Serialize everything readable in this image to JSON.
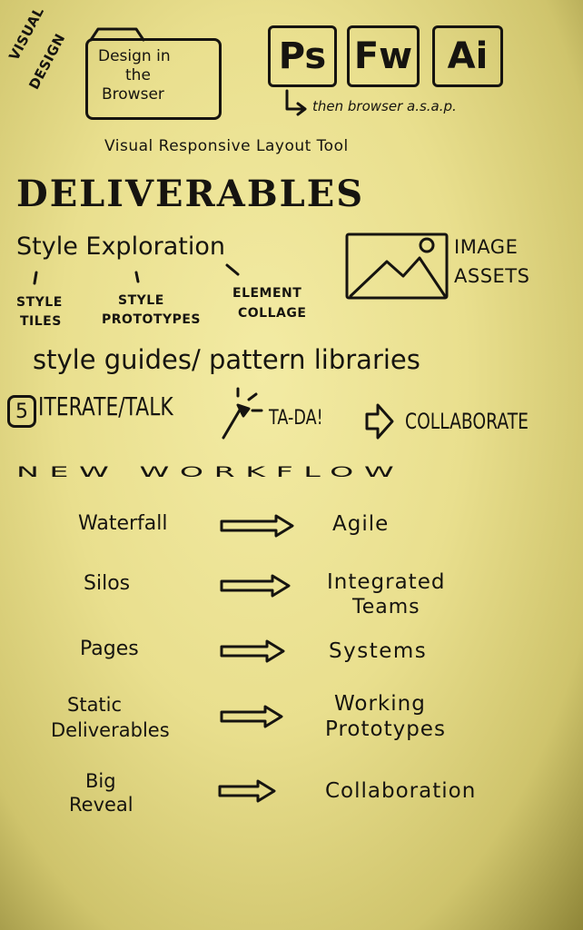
{
  "top": {
    "corner_label_1": "VISUAL",
    "corner_label_2": "DESIGN",
    "browser_box_lines": [
      "Design in",
      "the",
      "Browser"
    ],
    "apps": [
      "Ps",
      "Fw",
      "Ai"
    ],
    "then_note": "then browser a.s.a.p.",
    "subtitle": "Visual Responsive Layout Tool"
  },
  "deliverables": {
    "title": "DELIVERABLES",
    "style_exploration": "Style Exploration",
    "branches": [
      {
        "line1": "STYLE",
        "line2": "TILES"
      },
      {
        "line1": "STYLE",
        "line2": "PROTOTYPES"
      },
      {
        "line1": "ELEMENT",
        "line2": "COLLAGE"
      }
    ],
    "image_assets_line1": "IMAGE",
    "image_assets_line2": "ASSETS",
    "image_icon": "image-placeholder-icon",
    "style_guides": "style guides/ pattern libraries",
    "iterate_number": "5",
    "iterate": "ITERATE/TALK",
    "tada": "TA-DA!",
    "wand_icon": "magic-wand-icon",
    "collaborate": "COLLABORATE",
    "arrow_icon": "right-arrow-outline-icon"
  },
  "workflow": {
    "title": "NEW WORKFLOW",
    "rows": [
      {
        "from": [
          "Waterfall"
        ],
        "to": [
          "Agile"
        ]
      },
      {
        "from": [
          "Silos"
        ],
        "to": [
          "Integrated",
          "Teams"
        ]
      },
      {
        "from": [
          "Pages"
        ],
        "to": [
          "Systems"
        ]
      },
      {
        "from": [
          "Static",
          "Deliverables"
        ],
        "to": [
          "Working",
          "Prototypes"
        ]
      },
      {
        "from": [
          "Big",
          "Reveal"
        ],
        "to": [
          "Collaboration"
        ]
      }
    ]
  }
}
